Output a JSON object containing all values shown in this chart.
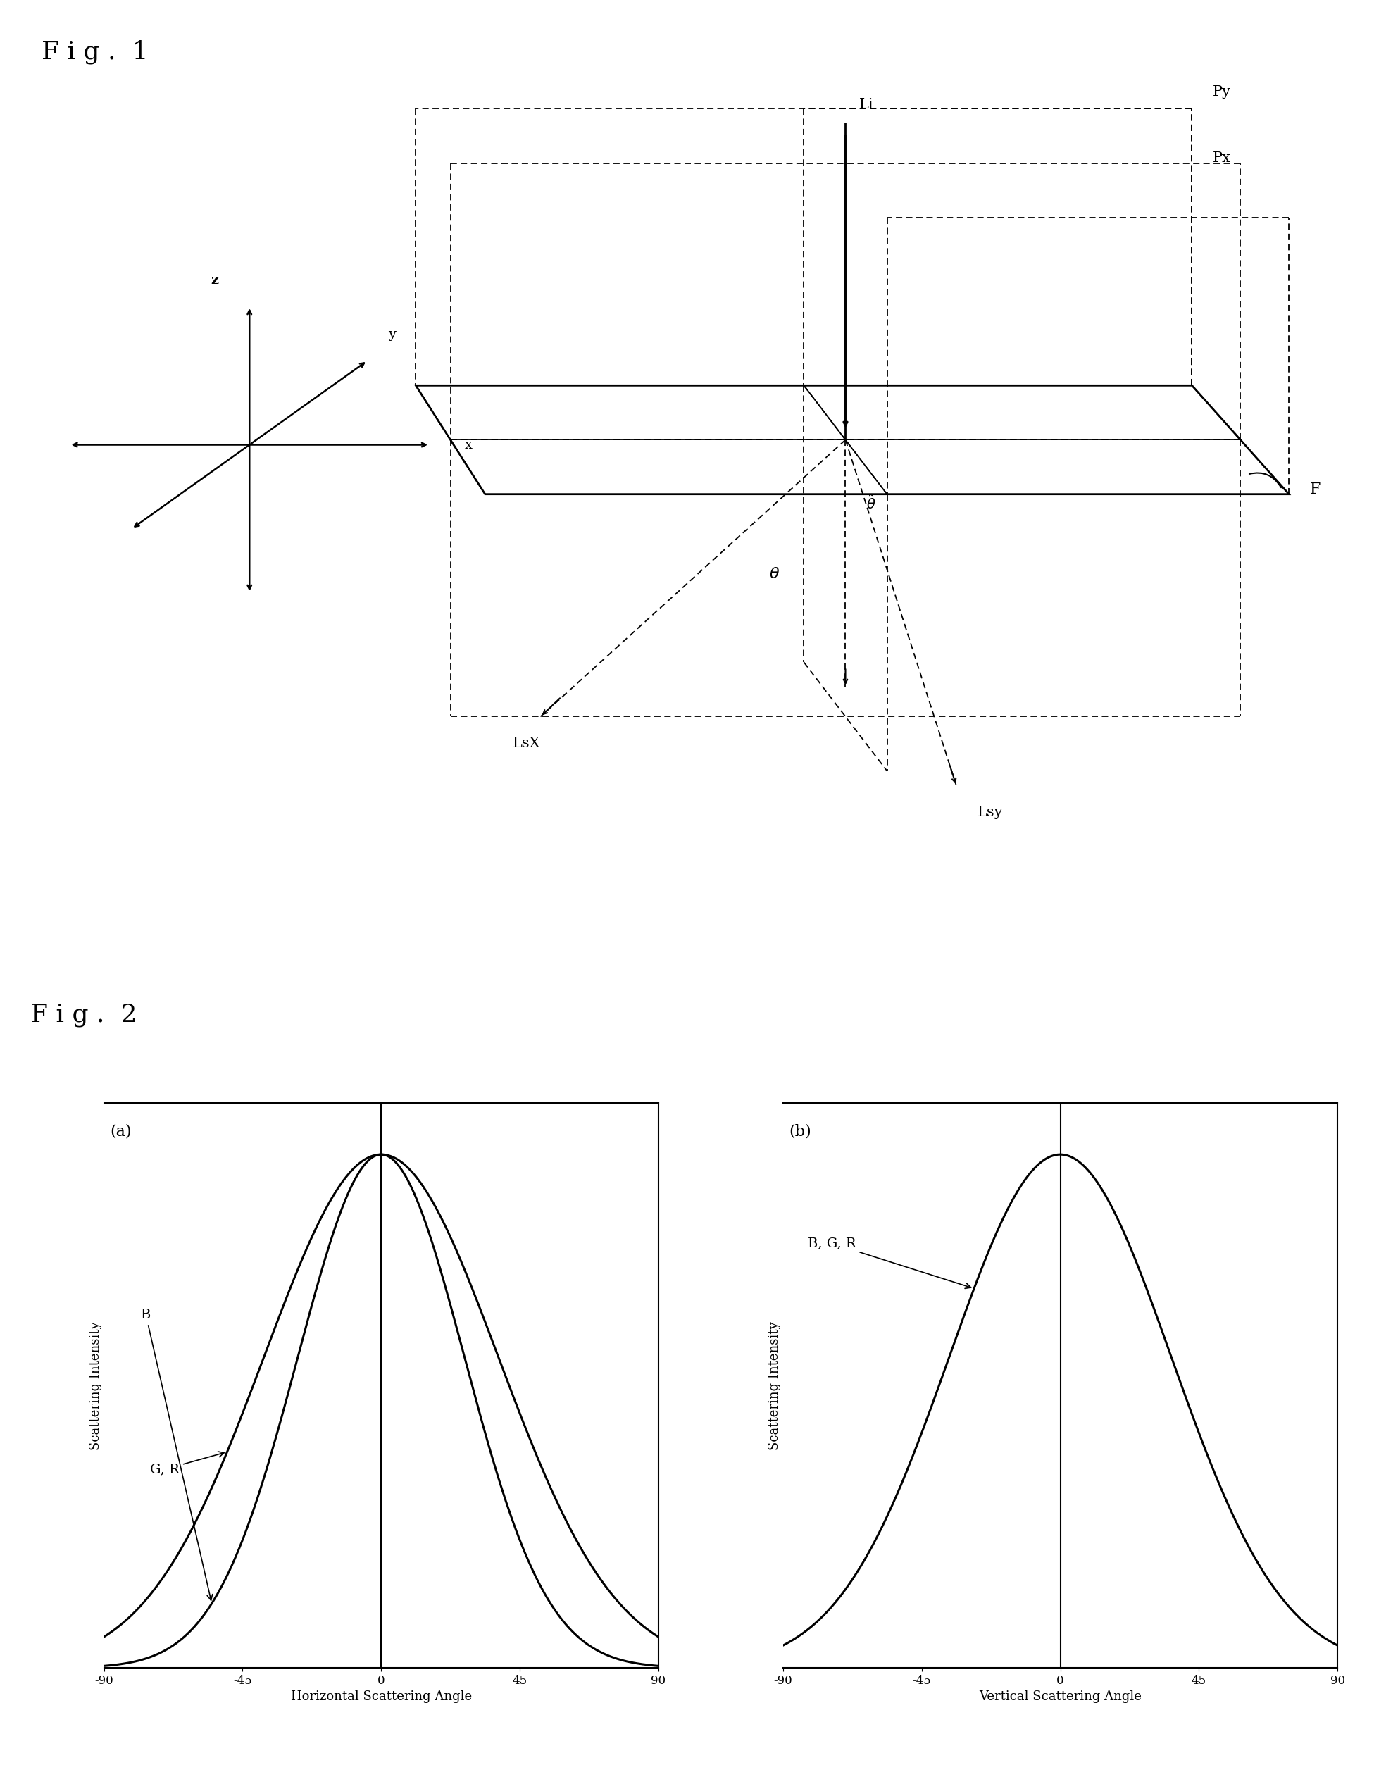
{
  "fig1_title": "F i g .  1",
  "fig2_title": "F i g .  2",
  "background_color": "#ffffff",
  "text_color": "#000000",
  "plot_a_label": "(a)",
  "plot_b_label": "(b)",
  "plot_a_xlabel": "Horizontal Scattering Angle",
  "plot_b_xlabel": "Vertical Scattering Angle",
  "plot_ylabel": "Scattering Intensity",
  "x_ticks": [
    -90,
    -45,
    0,
    45,
    90
  ],
  "B_label": "B",
  "GR_label": "G, R",
  "BGR_label": "B, G, R",
  "sigma_B_horiz": 27,
  "sigma_GR_horiz": 38,
  "sigma_BGR_vert": 36,
  "line_color": "#000000",
  "line_width": 2.2,
  "font_size_title": 26,
  "font_size_label": 13,
  "font_size_tick": 12,
  "font_size_annot": 14
}
